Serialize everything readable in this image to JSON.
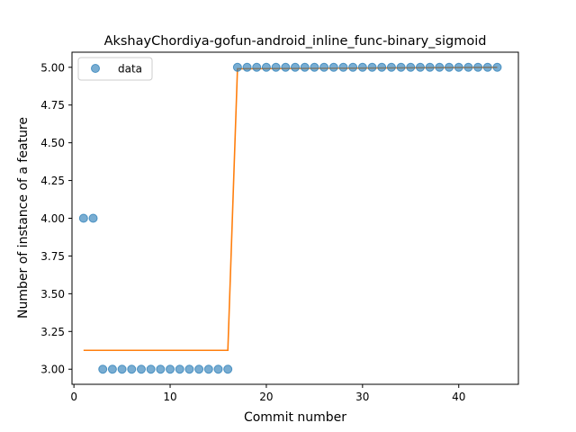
{
  "chart_data": {
    "type": "scatter",
    "title": "AkshayChordiya-gofun-android_inline_func-binary_sigmoid",
    "xlabel": "Commit number",
    "ylabel": "Number of instance of a feature",
    "xlim": [
      -0.2,
      46.2
    ],
    "ylim": [
      2.9,
      5.1
    ],
    "x_ticks": [
      0,
      10,
      20,
      30,
      40
    ],
    "x_tick_labels": [
      "0",
      "10",
      "20",
      "30",
      "40"
    ],
    "y_ticks": [
      3.0,
      3.25,
      3.5,
      3.75,
      4.0,
      4.25,
      4.5,
      4.75,
      5.0
    ],
    "y_tick_labels": [
      "3.00",
      "3.25",
      "3.50",
      "3.75",
      "4.00",
      "4.25",
      "4.50",
      "4.75",
      "5.00"
    ],
    "grid": false,
    "legend_position": "top-left",
    "series": [
      {
        "name": "data",
        "kind": "scatter",
        "color": "#1f77b4",
        "x": [
          1,
          2,
          3,
          4,
          5,
          6,
          7,
          8,
          9,
          10,
          11,
          12,
          13,
          14,
          15,
          16,
          17,
          18,
          19,
          20,
          21,
          22,
          23,
          24,
          25,
          26,
          27,
          28,
          29,
          30,
          31,
          32,
          33,
          34,
          35,
          36,
          37,
          38,
          39,
          40,
          41,
          42,
          43,
          44
        ],
        "y": [
          4,
          4,
          3,
          3,
          3,
          3,
          3,
          3,
          3,
          3,
          3,
          3,
          3,
          3,
          3,
          3,
          5,
          5,
          5,
          5,
          5,
          5,
          5,
          5,
          5,
          5,
          5,
          5,
          5,
          5,
          5,
          5,
          5,
          5,
          5,
          5,
          5,
          5,
          5,
          5,
          5,
          5,
          5,
          5
        ]
      },
      {
        "kind": "line",
        "color": "#ff7f0e",
        "x": [
          1,
          16,
          17,
          44
        ],
        "y": [
          3.125,
          3.125,
          4.99,
          5.0
        ]
      }
    ]
  }
}
